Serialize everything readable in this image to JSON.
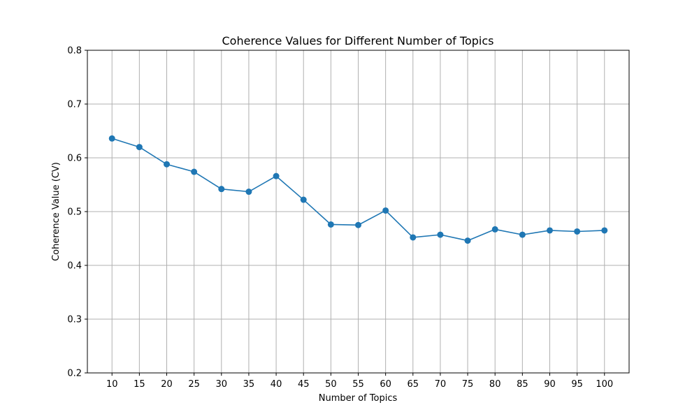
{
  "chart_data": {
    "type": "line",
    "title": "Coherence Values for Different Number of Topics",
    "xlabel": "Number of Topics",
    "ylabel": "Coherence Value (CV)",
    "x": [
      10,
      15,
      20,
      25,
      30,
      35,
      40,
      45,
      50,
      55,
      60,
      65,
      70,
      75,
      80,
      85,
      90,
      95,
      100
    ],
    "xticks": [
      "10",
      "15",
      "20",
      "25",
      "30",
      "35",
      "40",
      "45",
      "50",
      "55",
      "60",
      "65",
      "70",
      "75",
      "80",
      "85",
      "90",
      "95",
      "100"
    ],
    "yticks": [
      "0.2",
      "0.3",
      "0.4",
      "0.5",
      "0.6",
      "0.7",
      "0.8"
    ],
    "ytick_values": [
      0.2,
      0.3,
      0.4,
      0.5,
      0.6,
      0.7,
      0.8
    ],
    "xlim": [
      5.5,
      104.5
    ],
    "ylim": [
      0.2,
      0.8
    ],
    "grid": true,
    "series": [
      {
        "values": [
          0.636,
          0.62,
          0.588,
          0.574,
          0.542,
          0.537,
          0.566,
          0.522,
          0.476,
          0.475,
          0.502,
          0.452,
          0.457,
          0.446,
          0.467,
          0.457,
          0.465,
          0.463,
          0.465
        ],
        "color": "#1f77b4",
        "marker": "circle"
      }
    ]
  }
}
